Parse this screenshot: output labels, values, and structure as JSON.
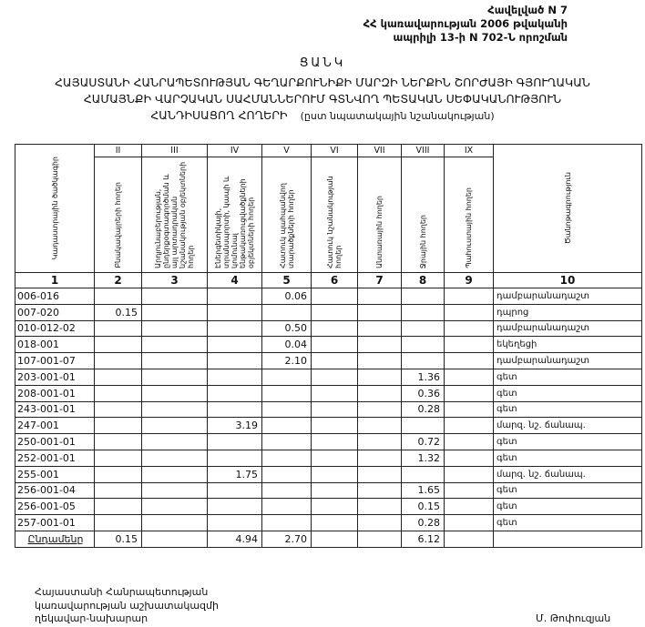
{
  "annex": [
    "Հավելված N 7",
    "ՀՀ կառավարության 2006 թվականի",
    "ապրիլի 13-ի N 702-Ն որոշման"
  ],
  "list_title": "ՑԱՆԿ",
  "title_lines": [
    "ՀԱՅԱՍՏԱՆԻ ՀԱՆՐԱՊԵՏՈՒԹՅԱՆ ԳԵՂԱՐՔՈՒՆԻՔԻ ՄԱՐԶԻ ՆԵՐՔԻՆ ՇՈՐԺԱՅԻ ԳՅՈՒՂԱԿԱՆ",
    "ՀԱՄԱՅՆՔԻ ՎԱՐՉԱԿԱՆ ՍԱՀՄԱՆՆԵՐՈՒՄ ԳՏՆՎՈՂ ՊԵՏԱԿԱՆ ՍԵՓԱԿԱՆՈՒԹՅՈՒՆ",
    "ՀԱՆԴԻՍԱՑՈՂ ՀՈՂԵՐԻ"
  ],
  "title_sub": "(ըստ նպատակային նշանակության)",
  "table": {
    "roman": [
      "",
      "II",
      "III",
      "IV",
      "V",
      "VI",
      "VII",
      "VIII",
      "IX",
      ""
    ],
    "headers": [
      "Կադաստրային ծածկագիր",
      "Բնակավայրերի հողեր",
      "Արդյունաբերության, ընդերքօգտագործման և այլ արտադրական նշանակության օբյեկտների հողեր",
      "Էներգետիկայի, տրանսպորտի, կապի և կոմունալ ենթակառուցվածքների օբյեկտների հողեր",
      "Հատուկ պահպանվող տարածքների հողեր",
      "Հատուկ նշանակության հողեր",
      "Անտառային հողեր",
      "Ջրային հողեր",
      "Պահուստային հողեր",
      "Ծանոթագրություն"
    ],
    "numbers": [
      "1",
      "2",
      "3",
      "4",
      "5",
      "6",
      "7",
      "8",
      "9",
      "10"
    ],
    "rows": [
      [
        "006-016",
        "",
        "",
        "",
        "0.06",
        "",
        "",
        "",
        "",
        "դամբարանադաշտ"
      ],
      [
        "007-020",
        "0.15",
        "",
        "",
        "",
        "",
        "",
        "",
        "",
        "դպրոց"
      ],
      [
        "010-012-02",
        "",
        "",
        "",
        "0.50",
        "",
        "",
        "",
        "",
        "դամբարանադաշտ"
      ],
      [
        "018-001",
        "",
        "",
        "",
        "0.04",
        "",
        "",
        "",
        "",
        "եկեղեցի"
      ],
      [
        "107-001-07",
        "",
        "",
        "",
        "2.10",
        "",
        "",
        "",
        "",
        "դամբարանադաշտ"
      ],
      [
        "203-001-01",
        "",
        "",
        "",
        "",
        "",
        "",
        "1.36",
        "",
        "գետ"
      ],
      [
        "208-001-01",
        "",
        "",
        "",
        "",
        "",
        "",
        "0.36",
        "",
        "գետ"
      ],
      [
        "243-001-01",
        "",
        "",
        "",
        "",
        "",
        "",
        "0.28",
        "",
        "գետ"
      ],
      [
        "247-001",
        "",
        "",
        "3.19",
        "",
        "",
        "",
        "",
        "",
        "մարզ. նշ. ճանապ."
      ],
      [
        "250-001-01",
        "",
        "",
        "",
        "",
        "",
        "",
        "0.72",
        "",
        "գետ"
      ],
      [
        "252-001-01",
        "",
        "",
        "",
        "",
        "",
        "",
        "1.32",
        "",
        "գետ"
      ],
      [
        "255-001",
        "",
        "",
        "1.75",
        "",
        "",
        "",
        "",
        "",
        "մարզ. նշ. ճանապ."
      ],
      [
        "256-001-04",
        "",
        "",
        "",
        "",
        "",
        "",
        "1.65",
        "",
        "գետ"
      ],
      [
        "256-001-05",
        "",
        "",
        "",
        "",
        "",
        "",
        "0.15",
        "",
        "գետ"
      ],
      [
        "257-001-01",
        "",
        "",
        "",
        "",
        "",
        "",
        "0.28",
        "",
        "գետ"
      ]
    ],
    "total": [
      "Ընդամենը",
      "0.15",
      "",
      "4.94",
      "2.70",
      "",
      "",
      "6.12",
      "",
      ""
    ]
  },
  "footer": [
    "Հայաստանի Հանրապետության",
    "կառավարության աշխատակազմի",
    "ղեկավար-նախարար"
  ],
  "signature": "Մ. Թոփուզյան"
}
